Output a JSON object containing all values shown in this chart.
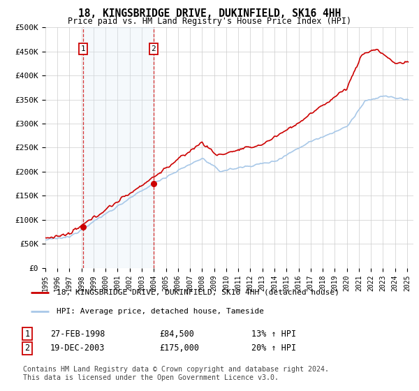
{
  "title": "18, KINGSBRIDGE DRIVE, DUKINFIELD, SK16 4HH",
  "subtitle": "Price paid vs. HM Land Registry's House Price Index (HPI)",
  "legend_line1": "18, KINGSBRIDGE DRIVE, DUKINFIELD, SK16 4HH (detached house)",
  "legend_line2": "HPI: Average price, detached house, Tameside",
  "sale1_label": "1",
  "sale1_date": "27-FEB-1998",
  "sale1_price": "£84,500",
  "sale1_hpi": "13% ↑ HPI",
  "sale1_year": 1998.15,
  "sale1_value": 84500,
  "sale2_label": "2",
  "sale2_date": "19-DEC-2003",
  "sale2_price": "£175,000",
  "sale2_hpi": "20% ↑ HPI",
  "sale2_year": 2003.97,
  "sale2_value": 175000,
  "hpi_color": "#a8c8e8",
  "price_color": "#cc0000",
  "sale_dot_color": "#cc0000",
  "shade_color": "#d8e8f5",
  "ylim": [
    0,
    500000
  ],
  "yticks": [
    0,
    50000,
    100000,
    150000,
    200000,
    250000,
    300000,
    350000,
    400000,
    450000,
    500000
  ],
  "background_color": "#ffffff",
  "grid_color": "#cccccc",
  "footer": "Contains HM Land Registry data © Crown copyright and database right 2024.\nThis data is licensed under the Open Government Licence v3.0."
}
